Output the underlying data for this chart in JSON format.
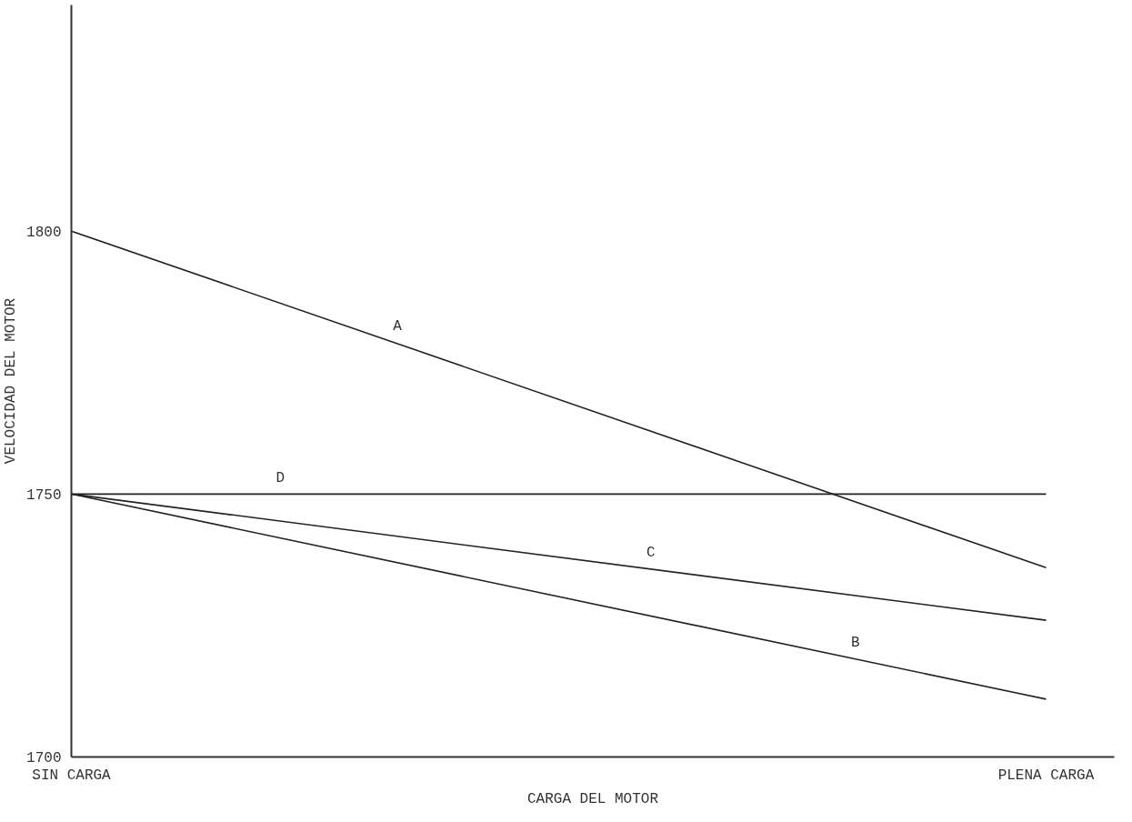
{
  "chart_data": {
    "type": "line",
    "xlabel": "CARGA DEL MOTOR",
    "ylabel": "VELOCIDAD DEL MOTOR",
    "categories": [
      "SIN CARGA",
      "PLENA CARGA"
    ],
    "series": [
      {
        "name": "A",
        "color": "#222222",
        "values": [
          1800,
          1736
        ]
      },
      {
        "name": "B",
        "color": "#222222",
        "values": [
          1750,
          1711
        ]
      },
      {
        "name": "C",
        "color": "#222222",
        "values": [
          1750,
          1726
        ]
      },
      {
        "name": "D",
        "color": "#222222",
        "values": [
          1750,
          1750
        ]
      }
    ],
    "ylim": [
      1700,
      1843
    ],
    "yticks": [
      1700,
      1750,
      1800
    ],
    "grid": false,
    "marker": "none",
    "line_style": "solid"
  }
}
